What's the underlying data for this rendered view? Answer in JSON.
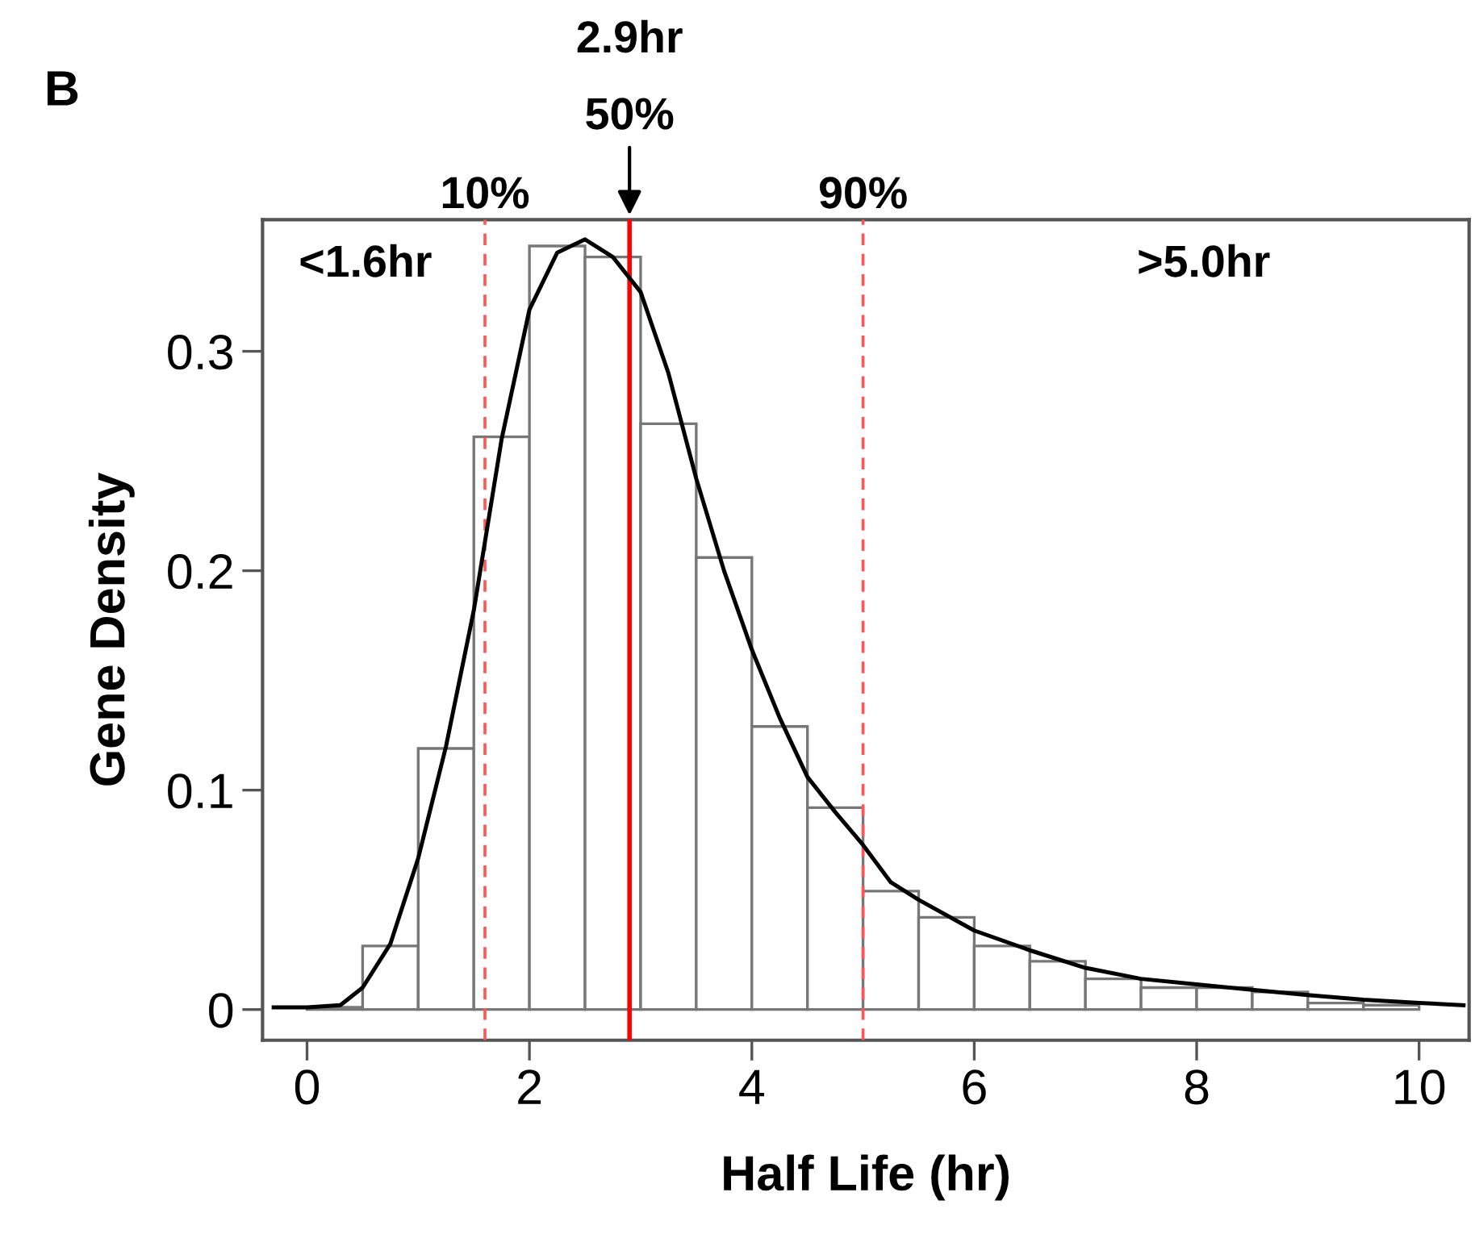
{
  "chart_data": {
    "type": "histogram",
    "xlabel": "Half Life (hr)",
    "ylabel": "Gene Density",
    "bins": [
      0,
      0.5,
      1,
      1.5,
      2,
      2.5,
      3,
      3.5,
      4,
      4.5,
      5,
      5.5,
      6,
      6.5,
      7,
      7.5,
      8,
      8.5,
      9,
      9.5,
      10
    ],
    "values": [
      0.001,
      0.029,
      0.119,
      0.261,
      0.348,
      0.343,
      0.267,
      0.206,
      0.129,
      0.092,
      0.054,
      0.042,
      0.029,
      0.022,
      0.014,
      0.01,
      0.01,
      0.008,
      0.003,
      0.002
    ],
    "color": "#ffffff",
    "series": [
      {
        "type": "line",
        "color": "#000000",
        "x": [
          -0.3,
          0.0,
          0.3,
          0.5,
          0.75,
          1.0,
          1.25,
          1.5,
          1.75,
          2.0,
          2.25,
          2.5,
          2.75,
          3.0,
          3.25,
          3.5,
          3.75,
          4.0,
          4.25,
          4.5,
          4.75,
          5.0,
          5.25,
          5.5,
          6.0,
          6.5,
          7.0,
          7.5,
          8.0,
          8.5,
          9.0,
          9.5,
          10.0,
          10.4
        ],
        "values": [
          0.001,
          0.001,
          0.002,
          0.01,
          0.03,
          0.069,
          0.12,
          0.182,
          0.26,
          0.319,
          0.345,
          0.351,
          0.343,
          0.327,
          0.29,
          0.242,
          0.2,
          0.164,
          0.133,
          0.106,
          0.09,
          0.075,
          0.058,
          0.05,
          0.036,
          0.027,
          0.019,
          0.014,
          0.0115,
          0.009,
          0.0066,
          0.0045,
          0.003,
          0.002
        ]
      }
    ],
    "xlim": [
      -0.4,
      10.45
    ],
    "ylim": [
      -0.014,
      0.36
    ],
    "xticks": [
      0,
      2,
      4,
      6,
      8,
      10
    ],
    "yticks": [
      0,
      {
        "value": 0.1,
        "label": "0.1"
      },
      {
        "value": 0.2,
        "label": "0.2"
      },
      {
        "value": 0.3,
        "label": "0.3"
      }
    ],
    "grid": false,
    "legend": false,
    "ref_lines": [
      {
        "axis": "x",
        "value": 1.6,
        "color": "#ff5555",
        "line_style": "dashed"
      },
      {
        "axis": "x",
        "value": 2.9,
        "color": "#ff0000",
        "line_style": "solid"
      },
      {
        "axis": "x",
        "value": 5.0,
        "color": "#ff5555",
        "line_style": "dashed"
      }
    ],
    "annotations": [
      "B",
      "2.9hr",
      "50%",
      "10%",
      "90%",
      "<1.6hr",
      ">5.0hr"
    ]
  }
}
